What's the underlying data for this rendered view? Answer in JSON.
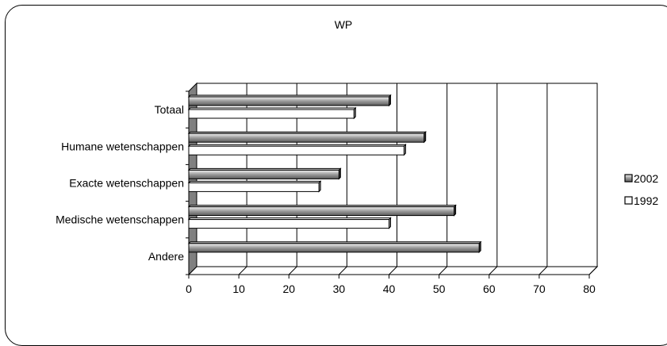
{
  "chart_data": {
    "type": "bar",
    "orientation": "horizontal",
    "title": "WP",
    "categories": [
      "Totaal",
      "Humane wetenschappen",
      "Exacte wetenschappen",
      "Medische wetenschappen",
      "Andere"
    ],
    "series": [
      {
        "name": "2002",
        "values": [
          40,
          47,
          30,
          53,
          58
        ],
        "color": "#a0a0a0"
      },
      {
        "name": "1992",
        "values": [
          33,
          43,
          26,
          40,
          null
        ],
        "color": "#ffffff"
      }
    ],
    "xlim": [
      0,
      80
    ],
    "xticks": [
      "0",
      "10",
      "20",
      "30",
      "40",
      "50",
      "60",
      "70",
      "80"
    ],
    "grid": "vertical",
    "legend_position": "right",
    "style": "3d"
  }
}
